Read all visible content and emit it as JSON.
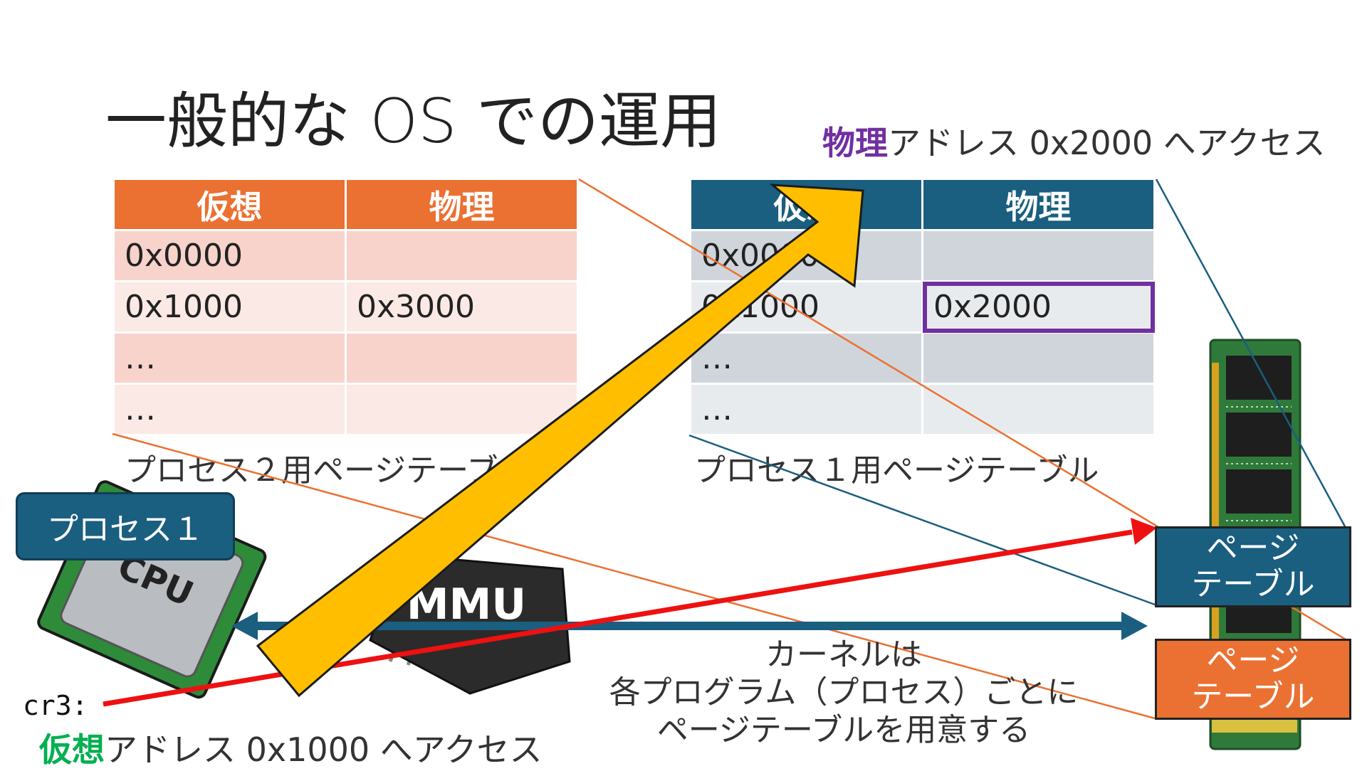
{
  "slide": {
    "title": "一般的な OS での運用",
    "physical_note": {
      "emph": "物理",
      "rest": "アドレス 0x2000 へアクセス"
    },
    "virtual_note": {
      "emph": "仮想",
      "rest": "アドレス 0x1000 へアクセス"
    },
    "cr3_label": "cr3:",
    "kernel_note": [
      "カーネルは",
      "各プログラム（プロセス）ごとに",
      "ページテーブルを用意する"
    ]
  },
  "process2_table": {
    "headers": [
      "仮想",
      "物理"
    ],
    "rows": [
      [
        "0x0000",
        ""
      ],
      [
        "0x1000",
        "0x3000"
      ],
      [
        "…",
        ""
      ],
      [
        "…",
        ""
      ]
    ],
    "caption": "プロセス２用ページテーブル"
  },
  "process1_table": {
    "headers": [
      "仮想",
      "物理"
    ],
    "rows": [
      [
        "0x0000",
        ""
      ],
      [
        "0x1000",
        "0x2000"
      ],
      [
        "…",
        ""
      ],
      [
        "…",
        ""
      ]
    ],
    "caption": "プロセス１用ページテーブル"
  },
  "process_label": "プロセス１",
  "chip_label": "MMU",
  "cpu_label": "CPU",
  "page_table_blue": [
    "ページ",
    "テーブル"
  ],
  "page_table_orange": [
    "ページ",
    "テーブル"
  ],
  "colors": {
    "orange": "#ea7132",
    "blue": "#1a5e80",
    "purple": "#7030a0",
    "green": "#00b050",
    "red": "#ee1111",
    "yellow_arrow": "#ffbf00"
  },
  "icons": [
    "cpu-icon",
    "mmu-chip-icon",
    "ram-module-icon"
  ]
}
